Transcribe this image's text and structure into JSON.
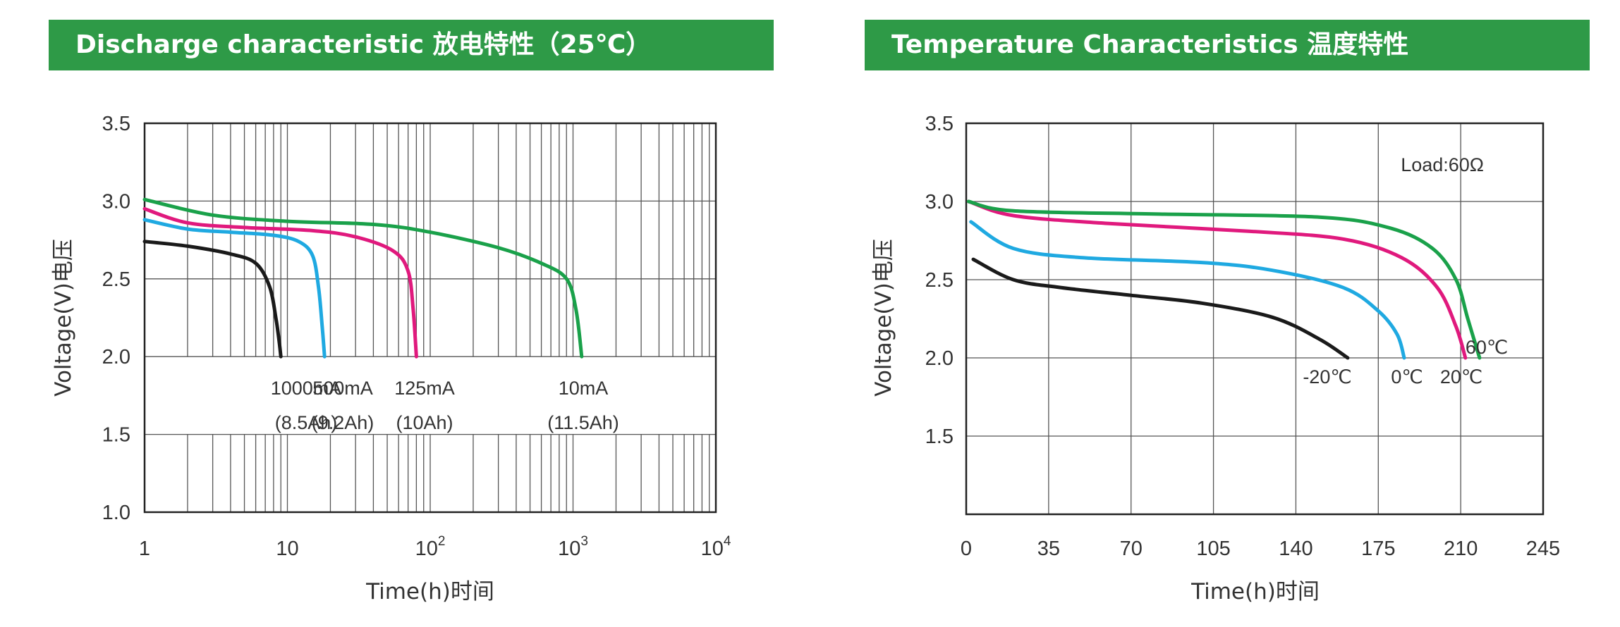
{
  "chart_data": [
    {
      "type": "line",
      "title": "Discharge characteristic  放电特性（25℃）",
      "xlabel": "Time(h)时间",
      "ylabel": "Voltage(V)电压",
      "xscale": "log",
      "xlim": [
        1,
        10000
      ],
      "ylim": [
        1.0,
        3.5
      ],
      "xticks": [
        {
          "value": 1,
          "base": "1",
          "exp": ""
        },
        {
          "value": 10,
          "base": "10",
          "exp": ""
        },
        {
          "value": 100,
          "base": "10",
          "exp": "2"
        },
        {
          "value": 1000,
          "base": "10",
          "exp": "3"
        },
        {
          "value": 10000,
          "base": "10",
          "exp": "4"
        }
      ],
      "yticks": [
        "1.0",
        "1.5",
        "2.0",
        "2.5",
        "3.0",
        "3.5"
      ],
      "grid": true,
      "series": [
        {
          "name": "1000mA",
          "capacity": "(8.5Ah)",
          "color": "#1a1a1a",
          "x": [
            1,
            2,
            4,
            6,
            7.5,
            8.3,
            8.8,
            9.0
          ],
          "y": [
            2.74,
            2.71,
            2.66,
            2.6,
            2.45,
            2.25,
            2.08,
            2.0
          ]
        },
        {
          "name": "500mA",
          "capacity": "(9.2Ah)",
          "color": "#1fa9e1",
          "x": [
            1,
            2,
            4,
            8,
            12,
            15,
            16.5,
            17.5,
            18.2
          ],
          "y": [
            2.88,
            2.82,
            2.8,
            2.78,
            2.74,
            2.65,
            2.45,
            2.2,
            2.0
          ]
        },
        {
          "name": "125mA",
          "capacity": "(10Ah)",
          "color": "#e0197d",
          "x": [
            1,
            2,
            5,
            15,
            30,
            55,
            70,
            76,
            80
          ],
          "y": [
            2.95,
            2.86,
            2.83,
            2.81,
            2.77,
            2.68,
            2.55,
            2.3,
            2.0
          ]
        },
        {
          "name": "10mA",
          "capacity": "(11.5Ah)",
          "color": "#1aa14a",
          "x": [
            1,
            3,
            10,
            40,
            100,
            300,
            600,
            900,
            1050,
            1150
          ],
          "y": [
            3.01,
            2.91,
            2.87,
            2.85,
            2.8,
            2.7,
            2.6,
            2.5,
            2.3,
            2.0
          ]
        }
      ]
    },
    {
      "type": "line",
      "title": "Temperature Characteristics  温度特性",
      "xlabel": "Time(h)时间",
      "ylabel": "Voltage(V)电压",
      "xlim": [
        0,
        245
      ],
      "ylim": [
        1.0,
        3.5
      ],
      "xticks": [
        "0",
        "35",
        "70",
        "105",
        "140",
        "175",
        "210",
        "245"
      ],
      "yticks": [
        "1.5",
        "2.0",
        "2.5",
        "3.0",
        "3.5"
      ],
      "grid": true,
      "annotation": "Load:60Ω",
      "series": [
        {
          "name": "-20℃",
          "color": "#1a1a1a",
          "x": [
            3,
            20,
            40,
            70,
            100,
            130,
            150,
            162
          ],
          "y": [
            2.63,
            2.5,
            2.45,
            2.4,
            2.35,
            2.26,
            2.12,
            2.0
          ]
        },
        {
          "name": "0℃",
          "color": "#1fa9e1",
          "x": [
            2,
            20,
            50,
            100,
            130,
            160,
            175,
            183,
            186
          ],
          "y": [
            2.87,
            2.7,
            2.64,
            2.61,
            2.56,
            2.45,
            2.3,
            2.15,
            2.0
          ]
        },
        {
          "name": "20℃",
          "color": "#e0197d",
          "x": [
            1,
            20,
            60,
            120,
            160,
            185,
            200,
            208,
            212
          ],
          "y": [
            3.0,
            2.91,
            2.86,
            2.81,
            2.76,
            2.64,
            2.45,
            2.2,
            2.0
          ]
        },
        {
          "name": "60℃",
          "color": "#1aa14a",
          "x": [
            1,
            20,
            80,
            150,
            180,
            198,
            208,
            213,
            218
          ],
          "y": [
            3.0,
            2.94,
            2.92,
            2.9,
            2.83,
            2.7,
            2.5,
            2.25,
            2.0
          ]
        }
      ]
    }
  ]
}
